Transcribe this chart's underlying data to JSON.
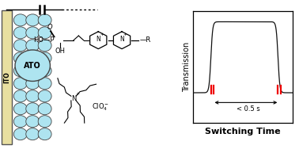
{
  "fig_width": 3.78,
  "fig_height": 1.88,
  "dpi": 100,
  "ito_color": "#e8dfa0",
  "ito_edge": "#555555",
  "ato_circle_color": "#aee4f0",
  "ato_circle_edge": "#444444",
  "background": "#ffffff",
  "transmission_label": "Transmission",
  "switching_label": "Switching Time",
  "annotation": "< 0.5 s",
  "red_bar_color": "#ee0000",
  "line_color": "#111111",
  "axis_fontsize": 7.0,
  "xlabel_fontsize": 8.0,
  "small_fontsize": 5.5
}
